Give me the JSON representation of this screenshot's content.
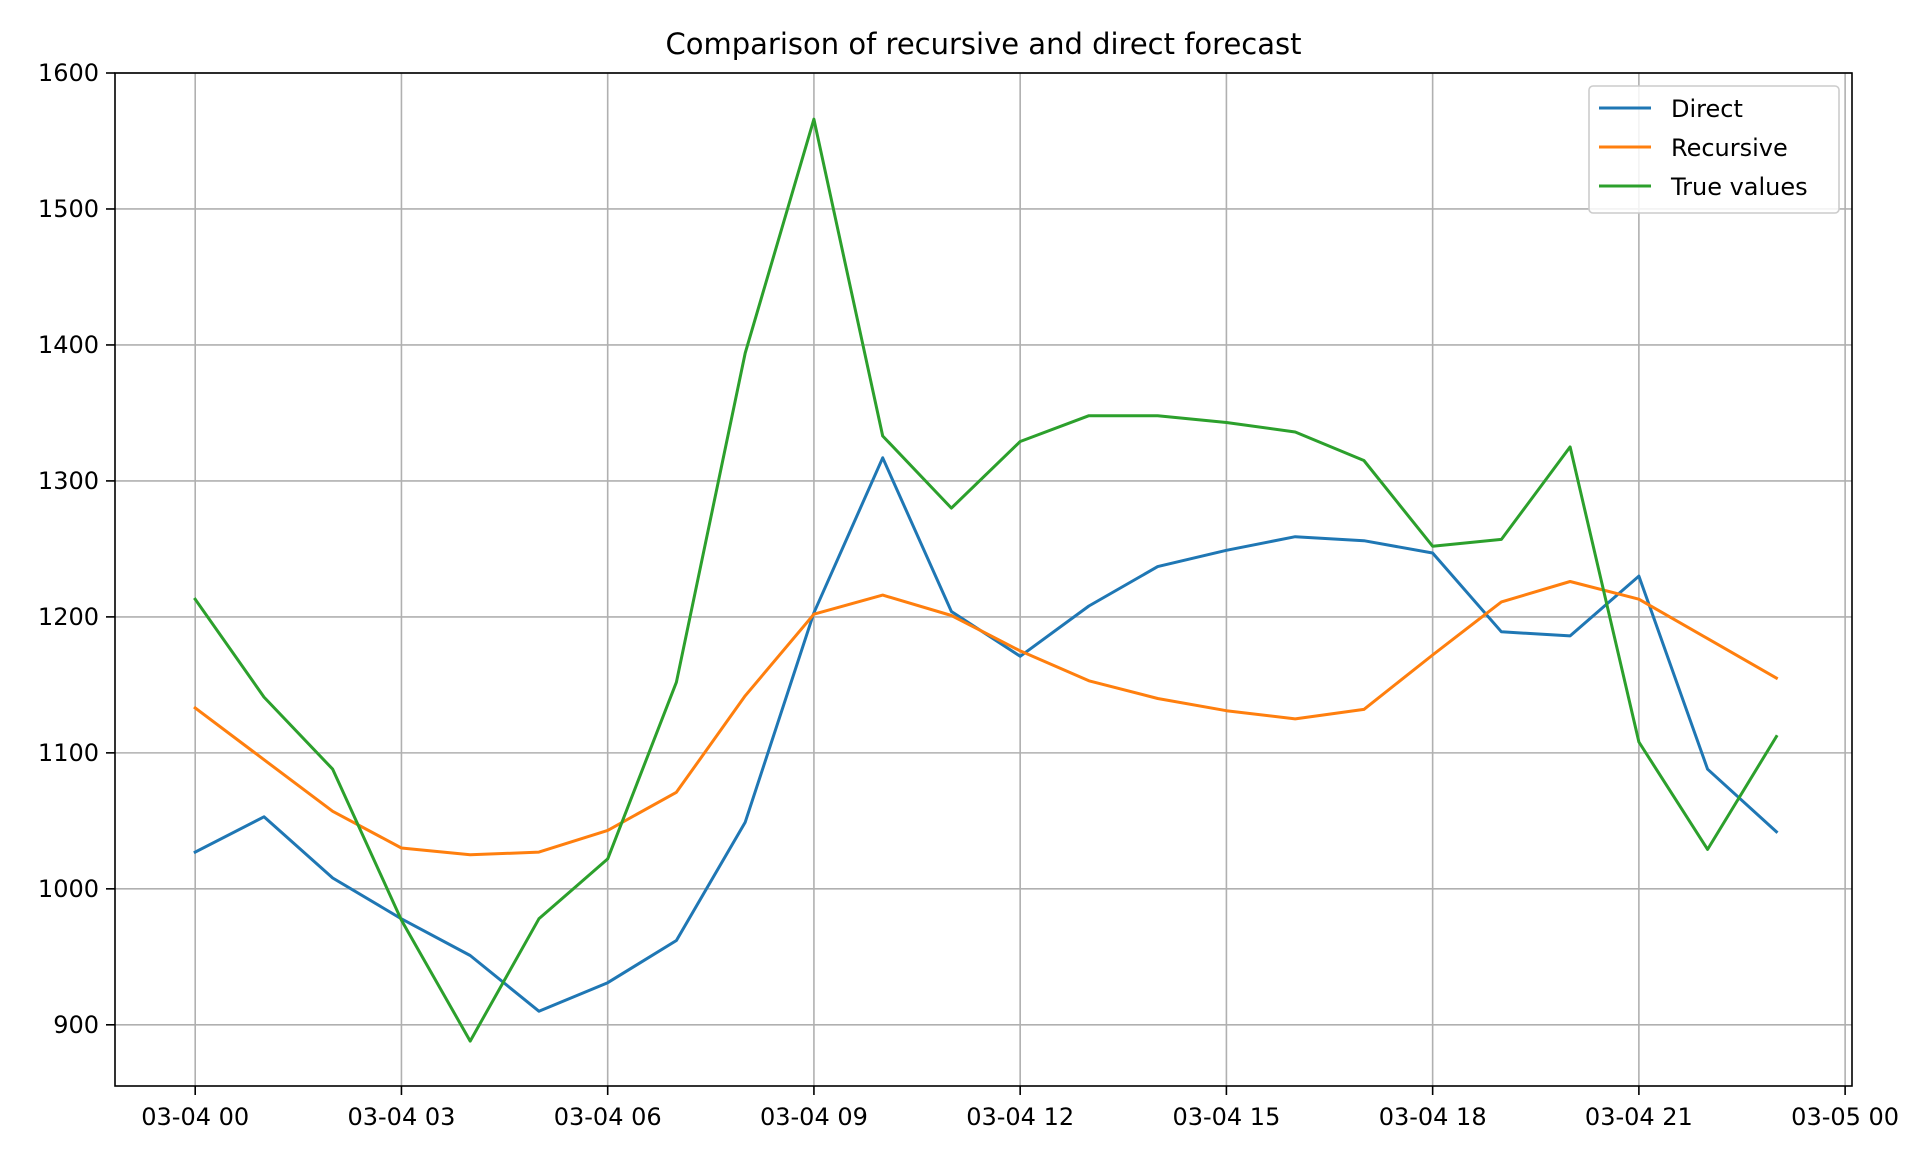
{
  "chart_data": {
    "type": "line",
    "title": "Comparison of recursive and direct forecast",
    "xlabel": "",
    "ylabel": "",
    "x": [
      "2022-03-04 00:00",
      "2022-03-04 01:00",
      "2022-03-04 02:00",
      "2022-03-04 03:00",
      "2022-03-04 04:00",
      "2022-03-04 05:00",
      "2022-03-04 06:00",
      "2022-03-04 07:00",
      "2022-03-04 08:00",
      "2022-03-04 09:00",
      "2022-03-04 10:00",
      "2022-03-04 11:00",
      "2022-03-04 12:00",
      "2022-03-04 13:00",
      "2022-03-04 14:00",
      "2022-03-04 15:00",
      "2022-03-04 16:00",
      "2022-03-04 17:00",
      "2022-03-04 18:00",
      "2022-03-04 19:00",
      "2022-03-04 20:00",
      "2022-03-04 21:00",
      "2022-03-04 22:00",
      "2022-03-04 23:00"
    ],
    "series": [
      {
        "name": "Direct",
        "color": "#1f77b4",
        "values": [
          1027,
          1053,
          1008,
          978,
          951,
          910,
          931,
          962,
          1049,
          1203,
          1317,
          1204,
          1171,
          1208,
          1237,
          1249,
          1259,
          1256,
          1247,
          1189,
          1186,
          1230,
          1088,
          1042
        ]
      },
      {
        "name": "Recursive",
        "color": "#ff7f0e",
        "values": [
          1133,
          1095,
          1057,
          1030,
          1025,
          1027,
          1043,
          1071,
          1142,
          1202,
          1216,
          1201,
          1175,
          1153,
          1140,
          1131,
          1125,
          1132,
          1172,
          1211,
          1226,
          1213,
          1184,
          1155
        ]
      },
      {
        "name": "True values",
        "color": "#2ca02c",
        "values": [
          1213,
          1141,
          1088,
          977,
          888,
          978,
          1022,
          1152,
          1394,
          1566,
          1333,
          1280,
          1329,
          1348,
          1348,
          1343,
          1336,
          1315,
          1252,
          1257,
          1325,
          1108,
          1029,
          1112
        ]
      }
    ],
    "xticks": [
      {
        "x": "2022-03-04 00:00",
        "label": "03-04 00"
      },
      {
        "x": "2022-03-04 03:00",
        "label": "03-04 03"
      },
      {
        "x": "2022-03-04 06:00",
        "label": "03-04 06"
      },
      {
        "x": "2022-03-04 09:00",
        "label": "03-04 09"
      },
      {
        "x": "2022-03-04 12:00",
        "label": "03-04 12"
      },
      {
        "x": "2022-03-04 15:00",
        "label": "03-04 15"
      },
      {
        "x": "2022-03-04 18:00",
        "label": "03-04 18"
      },
      {
        "x": "2022-03-04 21:00",
        "label": "03-04 21"
      },
      {
        "x": "2022-03-05 00:00",
        "label": "03-05 00"
      }
    ],
    "yticks": [
      900,
      1000,
      1100,
      1200,
      1300,
      1400,
      1500,
      1600
    ],
    "xlim": [
      "2022-03-03 22:50",
      "2022-03-05 00:06"
    ],
    "ylim": [
      855,
      1600
    ],
    "grid": true,
    "legend_position": "top-right"
  }
}
